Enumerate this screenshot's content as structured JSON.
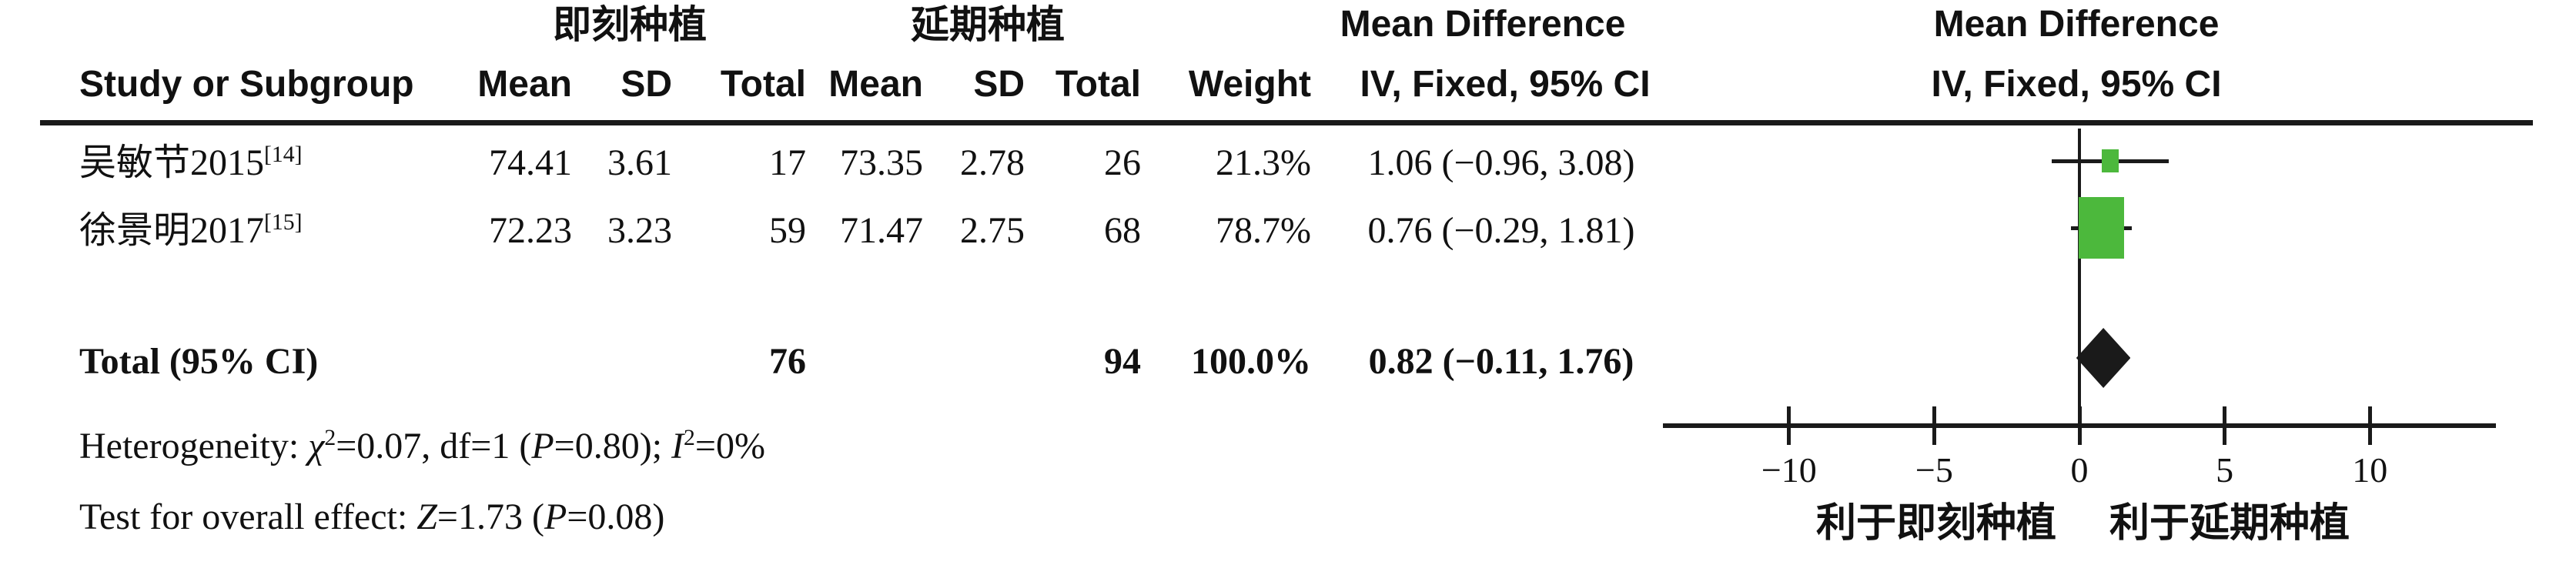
{
  "header": {
    "group1": "即刻种植",
    "group2": "延期种植",
    "md_col_title": "Mean Difference",
    "md_plot_title": "Mean Difference",
    "study_col": "Study or Subgroup",
    "mean1": "Mean",
    "sd1": "SD",
    "total1": "Total",
    "mean2": "Mean",
    "sd2": "SD",
    "total2": "Total",
    "weight": "Weight",
    "ci_col": "IV, Fixed, 95% CI",
    "ci_plot": "IV, Fixed, 95% CI"
  },
  "rows": [
    {
      "study": "吴敏节2015",
      "ref": "[14]",
      "mean1": "74.41",
      "sd1": "3.61",
      "total1": "17",
      "mean2": "73.35",
      "sd2": "2.78",
      "total2": "26",
      "weight": "21.3%",
      "ci_text": "1.06 (−0.96, 3.08)"
    },
    {
      "study": "徐景明2017",
      "ref": "[15]",
      "mean1": "72.23",
      "sd1": "3.23",
      "total1": "59",
      "mean2": "71.47",
      "sd2": "2.75",
      "total2": "68",
      "weight": "78.7%",
      "ci_text": "0.76 (−0.29, 1.81)"
    }
  ],
  "total": {
    "label": "Total (95% CI)",
    "total1": "76",
    "total2": "94",
    "weight": "100.0%",
    "ci_text": "0.82 (−0.11, 1.76)"
  },
  "footnotes": {
    "heterogeneity": [
      {
        "t": "Heterogeneity: "
      },
      {
        "t": "χ",
        "i": true
      },
      {
        "t": "2",
        "sup": true
      },
      {
        "t": "=0.07, df=1 ("
      },
      {
        "t": "P",
        "i": true
      },
      {
        "t": "=0.80); "
      },
      {
        "t": "I",
        "i": true
      },
      {
        "t": "2",
        "sup": true
      },
      {
        "t": "=0%"
      }
    ],
    "overall_effect": [
      {
        "t": "Test for overall effect: "
      },
      {
        "t": "Z",
        "i": true
      },
      {
        "t": "=1.73 ("
      },
      {
        "t": "P",
        "i": true
      },
      {
        "t": "=0.08)"
      }
    ]
  },
  "plot": {
    "tick_labels": [
      "−10",
      "−5",
      "0",
      "5",
      "10"
    ],
    "favors_left": "利于即刻种植",
    "favors_right": "利于延期种植",
    "marker_color": "#4cb83c",
    "line_color": "#1a1a1a"
  },
  "chart_data": {
    "type": "scatter",
    "subtype": "forest-plot-mean-difference-fixed-effect",
    "title": "Mean Difference IV, Fixed, 95% CI",
    "group_labels": [
      "即刻种植",
      "延期种植"
    ],
    "studies": [
      {
        "name": "吴敏节2015[14]",
        "mean1": 74.41,
        "sd1": 3.61,
        "n1": 17,
        "mean2": 73.35,
        "sd2": 2.78,
        "n2": 26,
        "weight_pct": 21.3,
        "md": 1.06,
        "ci_low": -0.96,
        "ci_high": 3.08
      },
      {
        "name": "徐景明2017[15]",
        "mean1": 72.23,
        "sd1": 3.23,
        "n1": 59,
        "mean2": 71.47,
        "sd2": 2.75,
        "n2": 68,
        "weight_pct": 78.7,
        "md": 0.76,
        "ci_low": -0.29,
        "ci_high": 1.81
      }
    ],
    "total": {
      "n1": 76,
      "n2": 94,
      "weight_pct": 100.0,
      "md": 0.82,
      "ci_low": -0.11,
      "ci_high": 1.76
    },
    "axis": {
      "ticks": [
        -10,
        -5,
        0,
        5,
        10
      ],
      "min": -14.3,
      "max": 14.3,
      "zero_line": true,
      "grid": false
    },
    "xlabel_left": "利于即刻种植",
    "xlabel_right": "利于延期种植",
    "heterogeneity": {
      "chi2": 0.07,
      "df": 1,
      "P": 0.8,
      "I2_pct": 0
    },
    "overall_effect": {
      "Z": 1.73,
      "P": 0.08
    }
  }
}
